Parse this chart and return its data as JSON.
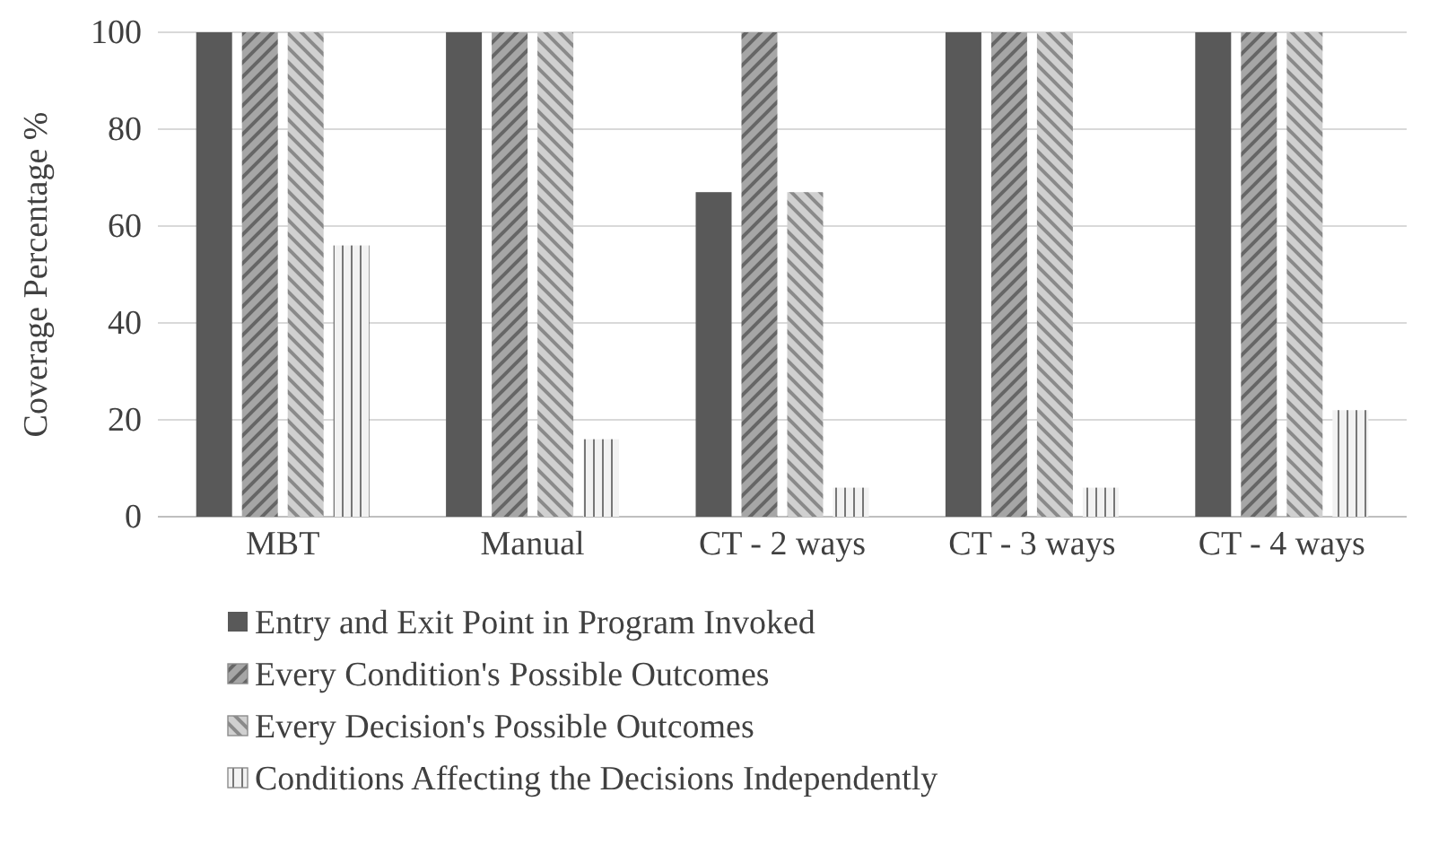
{
  "chart_data": {
    "type": "bar",
    "ylabel": "Coverage Percentage %",
    "categories": [
      "MBT",
      "Manual",
      "CT - 2 ways",
      "CT - 3 ways",
      "CT - 4 ways"
    ],
    "series": [
      {
        "name": "Entry and Exit Point in Program Invoked",
        "color": "#595959",
        "values": [
          100,
          100,
          67,
          100,
          100
        ]
      },
      {
        "name": "Every Condition's Possible Outcomes",
        "color": "#a6a6a6",
        "values": [
          100,
          100,
          100,
          100,
          100
        ]
      },
      {
        "name": "Every Decision's Possible Outcomes",
        "color": "#d0d0d0",
        "values": [
          100,
          100,
          67,
          100,
          100
        ]
      },
      {
        "name": "Conditions Affecting the Decisions Independently",
        "color": "#f2f2f2",
        "values": [
          56,
          16,
          6,
          6,
          22
        ]
      }
    ],
    "ylim": [
      0,
      100
    ],
    "yticks": [
      0,
      20,
      40,
      60,
      80,
      100
    ],
    "grid": "y",
    "legend": "bottom"
  }
}
